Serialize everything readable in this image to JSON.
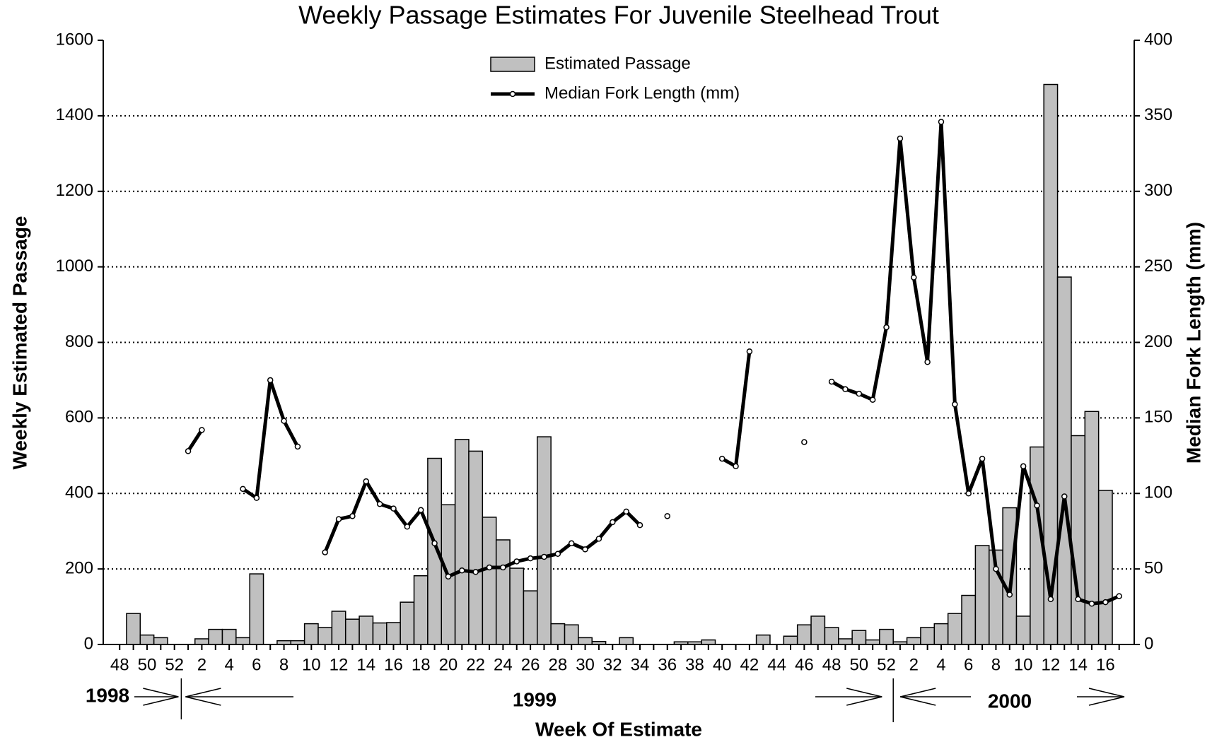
{
  "chart_data": {
    "type": "bar",
    "title": "Weekly Passage Estimates For Juvenile Steelhead Trout",
    "x_label": "Week Of Estimate",
    "y_label": "Weekly Estimated Passage",
    "y2_label": "Median Fork Length (mm)",
    "year_labels": [
      "1998",
      "1999",
      "2000"
    ],
    "categories": [
      "48",
      null,
      "50",
      null,
      "52",
      null,
      "2",
      null,
      "4",
      null,
      "6",
      null,
      "8",
      null,
      "10",
      null,
      "12",
      null,
      "14",
      null,
      "16",
      null,
      "18",
      null,
      "20",
      null,
      "22",
      null,
      "24",
      null,
      "26",
      null,
      "28",
      null,
      "30",
      null,
      "32",
      null,
      "34",
      null,
      "36",
      null,
      "38",
      null,
      "40",
      null,
      "42",
      null,
      "44",
      null,
      "46",
      null,
      "48",
      null,
      "50",
      null,
      "52",
      null,
      "2",
      null,
      "4",
      null,
      "6",
      null,
      "8",
      null,
      "10",
      null,
      "12",
      null,
      "14",
      null,
      "16",
      null
    ],
    "series": [
      {
        "name": "Estimated Passage",
        "type": "bar",
        "color": "#c0c0c0",
        "values": [
          0,
          82,
          25,
          18,
          0,
          0,
          15,
          40,
          40,
          18,
          187,
          0,
          10,
          10,
          55,
          45,
          88,
          67,
          75,
          57,
          58,
          112,
          182,
          493,
          370,
          543,
          512,
          337,
          277,
          202,
          142,
          550,
          55,
          52,
          18,
          8,
          0,
          18,
          0,
          0,
          0,
          7,
          7,
          12,
          0,
          0,
          0,
          25,
          0,
          22,
          52,
          75,
          45,
          15,
          37,
          12,
          40,
          7,
          18,
          45,
          55,
          82,
          130,
          262,
          250,
          362,
          75,
          523,
          1483,
          973,
          553,
          617,
          408,
          null
        ]
      },
      {
        "name": "Median Fork Length (mm)",
        "type": "line",
        "color": "#000000",
        "axis": "y2",
        "values": [
          null,
          null,
          null,
          null,
          null,
          128,
          142,
          null,
          null,
          103,
          97,
          175,
          148,
          131,
          null,
          61,
          83,
          85,
          108,
          93,
          90,
          78,
          89,
          67,
          45,
          49,
          48,
          51,
          51,
          55,
          57,
          58,
          60,
          67,
          63,
          70,
          81,
          88,
          79,
          null,
          85,
          null,
          null,
          null,
          123,
          118,
          194,
          null,
          null,
          null,
          134,
          null,
          174,
          169,
          166,
          162,
          210,
          335,
          243,
          187,
          346,
          159,
          100,
          123,
          50,
          33,
          118,
          92,
          30,
          98,
          30,
          27,
          28,
          32
        ]
      }
    ],
    "ylim": [
      0,
      1600
    ],
    "yticks": [
      0,
      200,
      400,
      600,
      800,
      1000,
      1200,
      1400,
      1600
    ],
    "y2lim": [
      0,
      400
    ],
    "y2ticks": [
      0,
      50,
      100,
      150,
      200,
      250,
      300,
      350,
      400
    ],
    "grid": true,
    "legend": "top"
  }
}
